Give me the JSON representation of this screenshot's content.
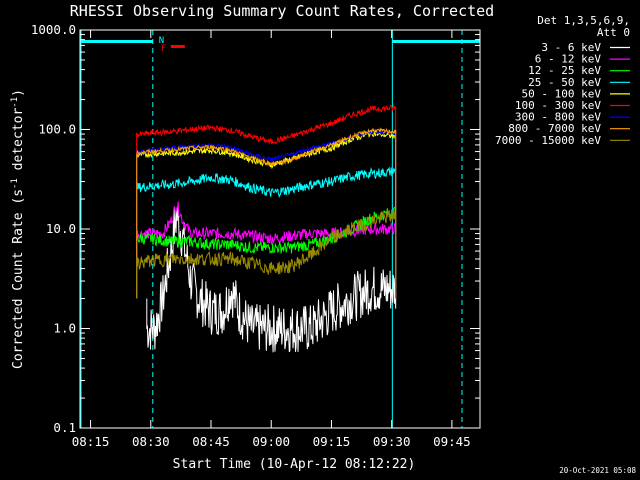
{
  "chart_data": {
    "type": "line",
    "title": "RHESSI Observing Summary Count Rates, Corrected",
    "xlabel": "Start Time (10-Apr-12 08:12:22)",
    "ylabel": "Corrected Count Rate (s⁻¹ detector⁻¹)",
    "ylabel_prefix": "Corrected Count Rate (s",
    "ylabel_mid": " detector",
    "ylabel_suffix": ")",
    "ylabel_exp": "-1",
    "y_scale": "log",
    "ylim": [
      0.1,
      1000
    ],
    "xlim": [
      "08:12:22",
      "09:52:00"
    ],
    "x_ticks": [
      "08:15",
      "08:30",
      "08:45",
      "09:00",
      "09:15",
      "09:30",
      "09:45"
    ],
    "y_ticks": [
      "0.1",
      "1.0",
      "10.0",
      "100.0",
      "1000.0"
    ],
    "legend_header": [
      "Det 1,3,5,6,9,",
      "Att 0"
    ],
    "timestamp": "20-Oct-2021 05:08",
    "flags": [
      {
        "label": "N",
        "color": "#00ffff"
      },
      {
        "label": "F",
        "color": "#ff0000"
      }
    ],
    "night_bars": [
      {
        "start": "08:12:22",
        "end": "08:30:30",
        "color": "#00ffff"
      },
      {
        "start": "09:30:10",
        "end": "09:52:00",
        "color": "#00ffff"
      }
    ],
    "data_gap": {
      "start": "08:30:30",
      "end": "09:30:10"
    },
    "data_interval": {
      "start": "08:26:30",
      "end": "09:31:00"
    },
    "series": [
      {
        "name": "3 - 6 keV",
        "color": "#ffffff",
        "points": [
          [
            "08:29:00",
            1.0
          ],
          [
            "08:31:00",
            1.0
          ],
          [
            "08:33:00",
            2.0
          ],
          [
            "08:35:00",
            6.0
          ],
          [
            "08:36:30",
            14.0
          ],
          [
            "08:38:00",
            8.0
          ],
          [
            "08:40:00",
            3.0
          ],
          [
            "08:42:00",
            2.0
          ],
          [
            "08:45:00",
            1.5
          ],
          [
            "08:48:00",
            1.5
          ],
          [
            "08:50:00",
            2.5
          ],
          [
            "08:52:00",
            1.5
          ],
          [
            "08:55:00",
            1.0
          ],
          [
            "09:00:00",
            1.0
          ],
          [
            "09:05:00",
            1.0
          ],
          [
            "09:10:00",
            1.0
          ],
          [
            "09:15:00",
            1.5
          ],
          [
            "09:20:00",
            2.0
          ],
          [
            "09:25:00",
            2.5
          ],
          [
            "09:29:00",
            2.5
          ],
          [
            "09:31:00",
            2.5
          ]
        ]
      },
      {
        "name": "6 - 12 keV",
        "color": "#ff00ff",
        "points": [
          [
            "08:26:30",
            9.0
          ],
          [
            "08:30:00",
            9.0
          ],
          [
            "08:33:00",
            9.0
          ],
          [
            "08:35:00",
            12.0
          ],
          [
            "08:36:30",
            18.0
          ],
          [
            "08:38:00",
            12.0
          ],
          [
            "08:40:00",
            9.0
          ],
          [
            "08:45:00",
            9.0
          ],
          [
            "08:50:00",
            9.0
          ],
          [
            "08:55:00",
            8.5
          ],
          [
            "09:00:00",
            8.0
          ],
          [
            "09:05:00",
            8.5
          ],
          [
            "09:10:00",
            9.0
          ],
          [
            "09:15:00",
            9.0
          ],
          [
            "09:20:00",
            9.5
          ],
          [
            "09:25:00",
            10.0
          ],
          [
            "09:31:00",
            10.0
          ]
        ]
      },
      {
        "name": "12 - 25 keV",
        "color": "#00ff00",
        "points": [
          [
            "08:26:30",
            8.0
          ],
          [
            "08:30:00",
            8.0
          ],
          [
            "08:35:00",
            7.5
          ],
          [
            "08:40:00",
            7.5
          ],
          [
            "08:45:00",
            7.0
          ],
          [
            "08:50:00",
            7.0
          ],
          [
            "08:55:00",
            6.5
          ],
          [
            "09:00:00",
            6.5
          ],
          [
            "09:05:00",
            6.5
          ],
          [
            "09:10:00",
            7.0
          ],
          [
            "09:15:00",
            8.0
          ],
          [
            "09:20:00",
            10.0
          ],
          [
            "09:25:00",
            13.0
          ],
          [
            "09:31:00",
            15.0
          ]
        ]
      },
      {
        "name": "25 - 50 keV",
        "color": "#00ffff",
        "points": [
          [
            "08:26:30",
            26.0
          ],
          [
            "08:30:00",
            27.0
          ],
          [
            "08:35:00",
            28.0
          ],
          [
            "08:40:00",
            30.0
          ],
          [
            "08:45:00",
            33.0
          ],
          [
            "08:50:00",
            31.0
          ],
          [
            "08:55:00",
            26.0
          ],
          [
            "09:00:00",
            23.0
          ],
          [
            "09:05:00",
            25.0
          ],
          [
            "09:10:00",
            28.0
          ],
          [
            "09:15:00",
            30.0
          ],
          [
            "09:20:00",
            34.0
          ],
          [
            "09:25:00",
            36.0
          ],
          [
            "09:31:00",
            38.0
          ]
        ]
      },
      {
        "name": "50 - 100 keV",
        "color": "#ffff00",
        "points": [
          [
            "08:26:30",
            55.0
          ],
          [
            "08:30:00",
            57.0
          ],
          [
            "08:35:00",
            58.0
          ],
          [
            "08:40:00",
            60.0
          ],
          [
            "08:45:00",
            62.0
          ],
          [
            "08:50:00",
            58.0
          ],
          [
            "08:55:00",
            50.0
          ],
          [
            "09:00:00",
            44.0
          ],
          [
            "09:05:00",
            50.0
          ],
          [
            "09:10:00",
            58.0
          ],
          [
            "09:15:00",
            65.0
          ],
          [
            "09:20:00",
            80.0
          ],
          [
            "09:25:00",
            92.0
          ],
          [
            "09:31:00",
            85.0
          ]
        ]
      },
      {
        "name": "100 - 300 keV",
        "color": "#ff0000",
        "points": [
          [
            "08:26:30",
            88.0
          ],
          [
            "08:30:00",
            92.0
          ],
          [
            "08:35:00",
            95.0
          ],
          [
            "08:40:00",
            100.0
          ],
          [
            "08:45:00",
            104.0
          ],
          [
            "08:50:00",
            98.0
          ],
          [
            "08:55:00",
            85.0
          ],
          [
            "09:00:00",
            75.0
          ],
          [
            "09:05:00",
            85.0
          ],
          [
            "09:10:00",
            100.0
          ],
          [
            "09:15:00",
            115.0
          ],
          [
            "09:20:00",
            140.0
          ],
          [
            "09:25:00",
            160.0
          ],
          [
            "09:31:00",
            165.0
          ]
        ]
      },
      {
        "name": "300 - 800 keV",
        "color": "#0000ff",
        "points": [
          [
            "08:26:30",
            60.0
          ],
          [
            "08:30:00",
            62.0
          ],
          [
            "08:35:00",
            65.0
          ],
          [
            "08:40:00",
            68.0
          ],
          [
            "08:45:00",
            70.0
          ],
          [
            "08:50:00",
            66.0
          ],
          [
            "08:55:00",
            56.0
          ],
          [
            "09:00:00",
            50.0
          ],
          [
            "09:05:00",
            56.0
          ],
          [
            "09:10:00",
            65.0
          ],
          [
            "09:15:00",
            72.0
          ],
          [
            "09:20:00",
            84.0
          ],
          [
            "09:25:00",
            95.0
          ],
          [
            "09:31:00",
            92.0
          ]
        ]
      },
      {
        "name": "800 - 7000 keV",
        "color": "#ffa000",
        "points": [
          [
            "08:26:30",
            58.0
          ],
          [
            "08:30:00",
            60.0
          ],
          [
            "08:35:00",
            62.0
          ],
          [
            "08:40:00",
            65.0
          ],
          [
            "08:45:00",
            67.0
          ],
          [
            "08:50:00",
            62.0
          ],
          [
            "08:55:00",
            52.0
          ],
          [
            "09:00:00",
            45.0
          ],
          [
            "09:05:00",
            50.0
          ],
          [
            "09:10:00",
            60.0
          ],
          [
            "09:15:00",
            70.0
          ],
          [
            "09:20:00",
            85.0
          ],
          [
            "09:25:00",
            98.0
          ],
          [
            "09:31:00",
            95.0
          ]
        ]
      },
      {
        "name": "7000 - 15000 keV",
        "color": "#9a8a00",
        "points": [
          [
            "08:26:30",
            4.5
          ],
          [
            "08:30:00",
            4.8
          ],
          [
            "08:35:00",
            5.0
          ],
          [
            "08:40:00",
            5.0
          ],
          [
            "08:45:00",
            5.0
          ],
          [
            "08:50:00",
            5.0
          ],
          [
            "08:55:00",
            4.5
          ],
          [
            "09:00:00",
            4.0
          ],
          [
            "09:05:00",
            4.2
          ],
          [
            "09:10:00",
            5.5
          ],
          [
            "09:15:00",
            8.0
          ],
          [
            "09:20:00",
            10.0
          ],
          [
            "09:25:00",
            12.0
          ],
          [
            "09:31:00",
            14.0
          ]
        ]
      }
    ]
  }
}
